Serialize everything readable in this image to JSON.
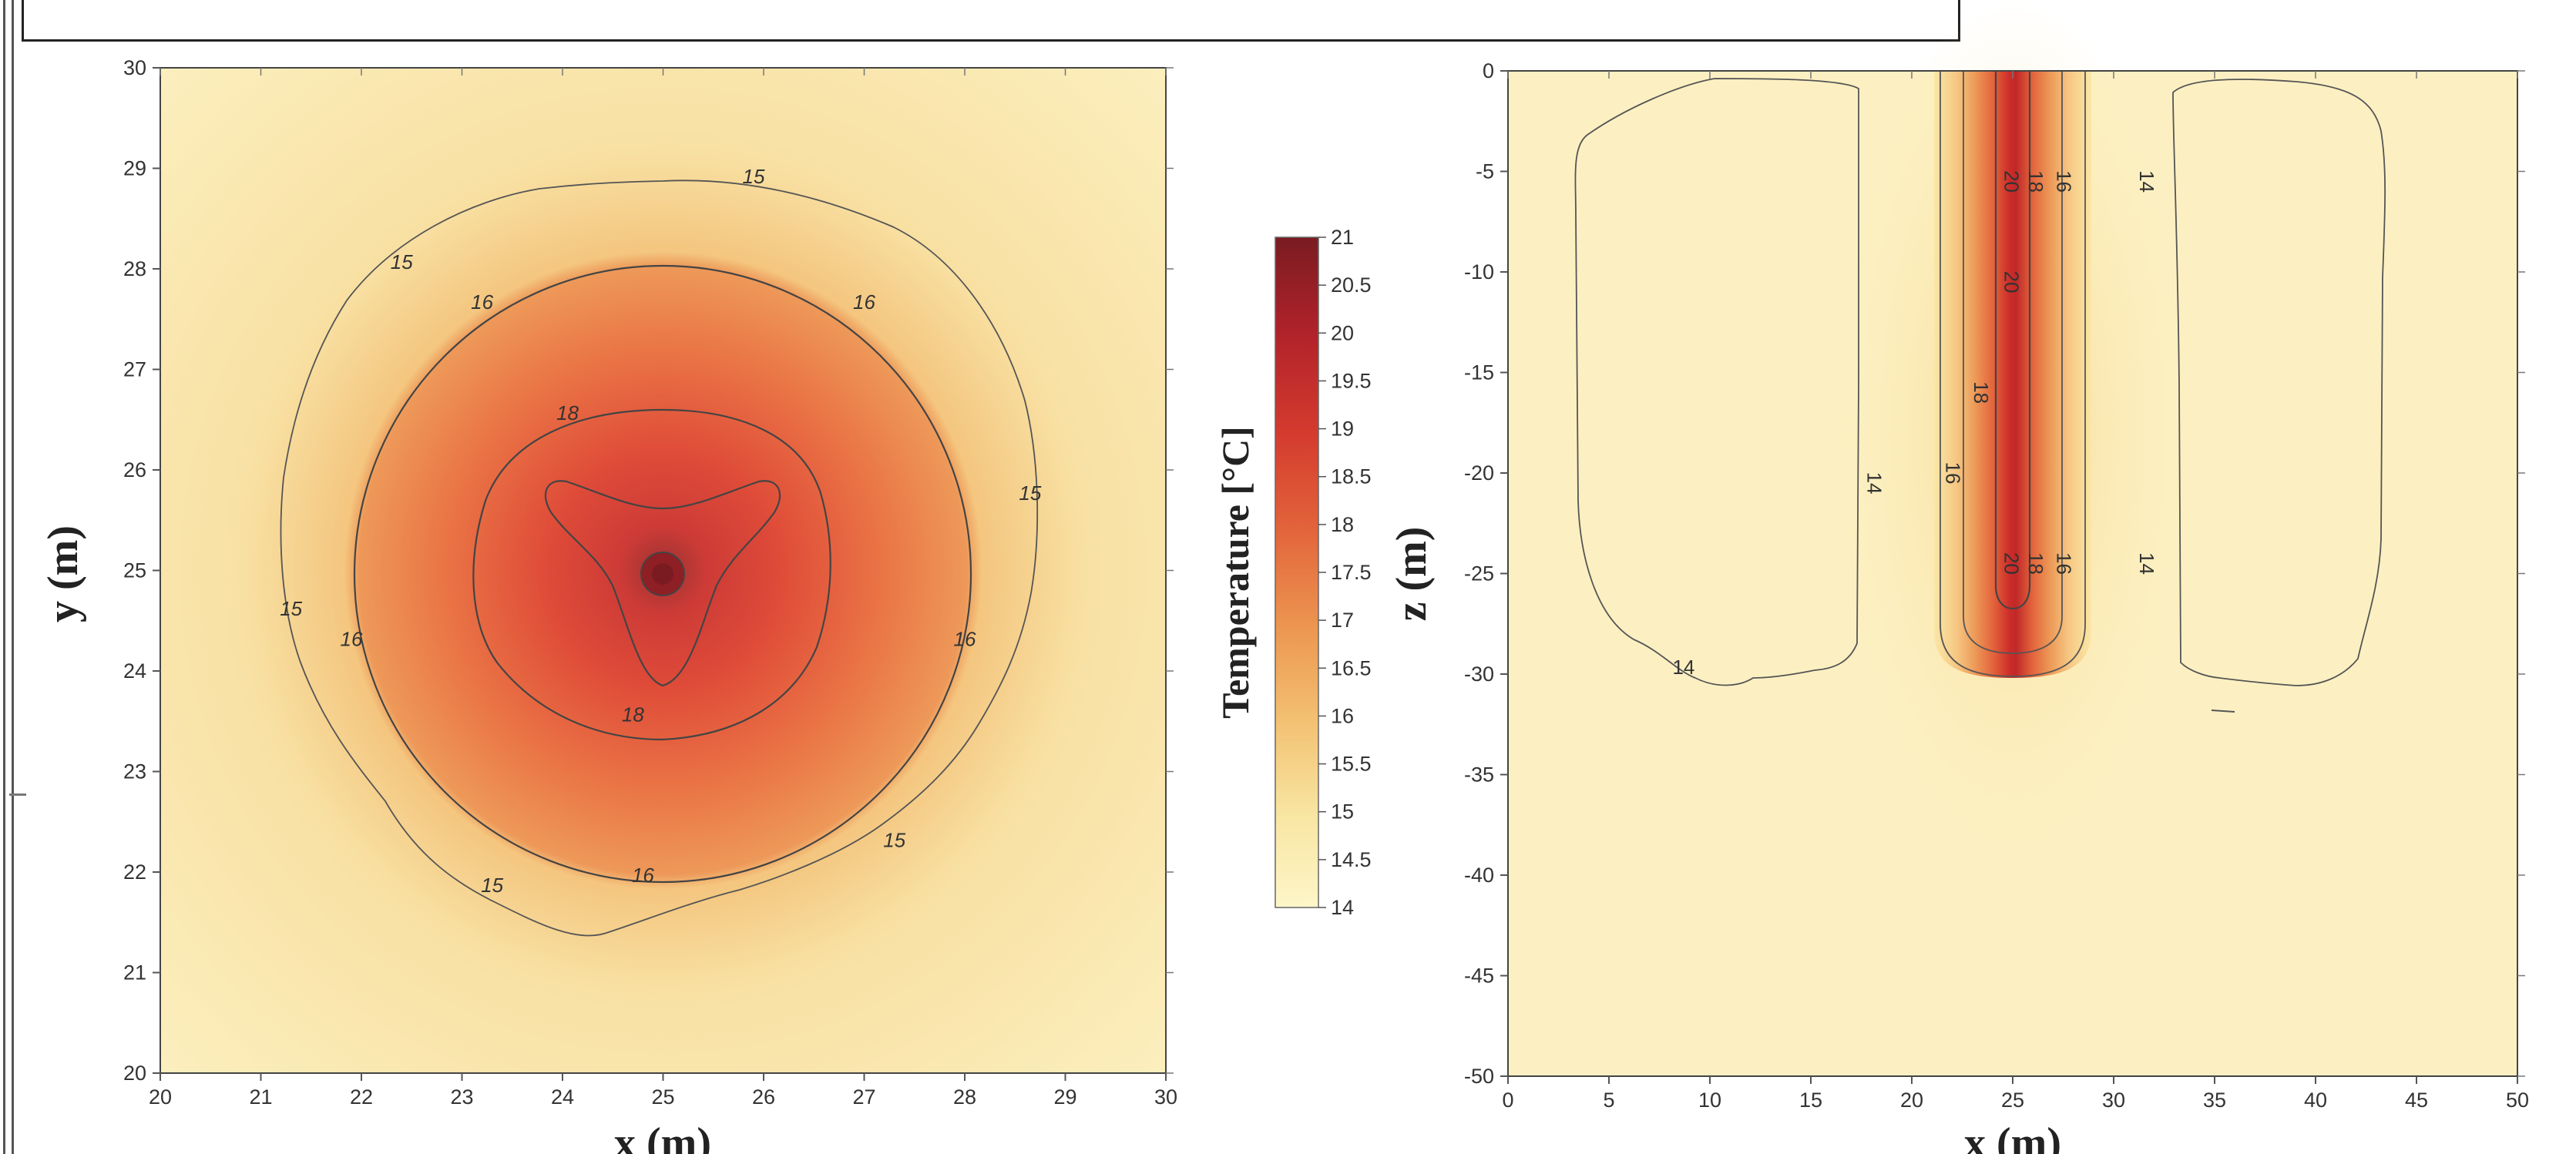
{
  "chart_data": [
    {
      "type": "heatmap",
      "xlabel": "x (m)",
      "ylabel": "y (m)",
      "xlim": [
        20,
        30
      ],
      "ylim": [
        20,
        30
      ],
      "xticks": [
        "20",
        "21",
        "22",
        "23",
        "24",
        "25",
        "26",
        "27",
        "28",
        "29",
        "30"
      ],
      "yticks": [
        "20",
        "21",
        "22",
        "23",
        "24",
        "25",
        "26",
        "27",
        "28",
        "29",
        "30"
      ],
      "contour_levels": [
        15,
        16,
        18,
        20
      ],
      "contour_labels": [
        {
          "text": "15",
          "x": 25.9,
          "y": 28.85
        },
        {
          "text": "15",
          "x": 22.4,
          "y": 28.0
        },
        {
          "text": "15",
          "x": 28.65,
          "y": 25.7
        },
        {
          "text": "15",
          "x": 21.3,
          "y": 24.55
        },
        {
          "text": "15",
          "x": 27.3,
          "y": 22.25
        },
        {
          "text": "15",
          "x": 23.3,
          "y": 21.8
        },
        {
          "text": "16",
          "x": 23.2,
          "y": 27.6
        },
        {
          "text": "16",
          "x": 27.0,
          "y": 27.6
        },
        {
          "text": "16",
          "x": 21.9,
          "y": 24.25
        },
        {
          "text": "16",
          "x": 28.0,
          "y": 24.25
        },
        {
          "text": "16",
          "x": 24.8,
          "y": 21.9
        },
        {
          "text": "18",
          "x": 24.05,
          "y": 26.5
        },
        {
          "text": "18",
          "x": 24.7,
          "y": 23.5
        }
      ],
      "peak": {
        "x": 25,
        "y": 25,
        "value": 21
      }
    },
    {
      "type": "heatmap",
      "xlabel": "x (m)",
      "ylabel": "z (m)",
      "xlim": [
        0,
        50
      ],
      "ylim": [
        -50,
        0
      ],
      "xticks": [
        "0",
        "5",
        "10",
        "15",
        "20",
        "25",
        "30",
        "35",
        "40",
        "45",
        "50"
      ],
      "yticks": [
        "0",
        "-5",
        "-10",
        "-15",
        "-20",
        "-25",
        "-30",
        "-35",
        "-40",
        "-45",
        "-50"
      ],
      "contour_levels": [
        14,
        16,
        18,
        20
      ],
      "contour_labels": [
        {
          "text": "14",
          "x": 8.7,
          "y": -30.0
        },
        {
          "text": "14",
          "x": 17.8,
          "y": -20.5
        },
        {
          "text": "14",
          "x": 31.3,
          "y": -5.5
        },
        {
          "text": "14",
          "x": 31.3,
          "y": -24.5
        },
        {
          "text": "16",
          "x": 21.7,
          "y": -20.0
        },
        {
          "text": "18",
          "x": 23.1,
          "y": -16.0
        },
        {
          "text": "20",
          "x": 24.6,
          "y": -5.5
        },
        {
          "text": "20",
          "x": 24.6,
          "y": -10.5
        },
        {
          "text": "20",
          "x": 24.6,
          "y": -24.5
        },
        {
          "text": "18",
          "x": 25.8,
          "y": -5.5
        },
        {
          "text": "16",
          "x": 27.2,
          "y": -5.5
        },
        {
          "text": "18",
          "x": 25.8,
          "y": -24.5
        },
        {
          "text": "16",
          "x": 27.2,
          "y": -24.5
        }
      ],
      "hot_column": {
        "x_center": 25,
        "z_bottom": -30
      }
    }
  ],
  "colorbar": {
    "label": "Temperature [°C]",
    "ticks": [
      "21",
      "20.5",
      "20",
      "19.5",
      "19",
      "18.5",
      "18",
      "17.5",
      "17",
      "16.5",
      "16",
      "15.5",
      "15",
      "14.5",
      "14"
    ],
    "range": [
      14,
      21
    ],
    "colors": [
      "#fdf6c8",
      "#f8e5a2",
      "#f3c071",
      "#ec9550",
      "#e2623a",
      "#d43a2e",
      "#b0222a",
      "#7a1b22"
    ]
  }
}
